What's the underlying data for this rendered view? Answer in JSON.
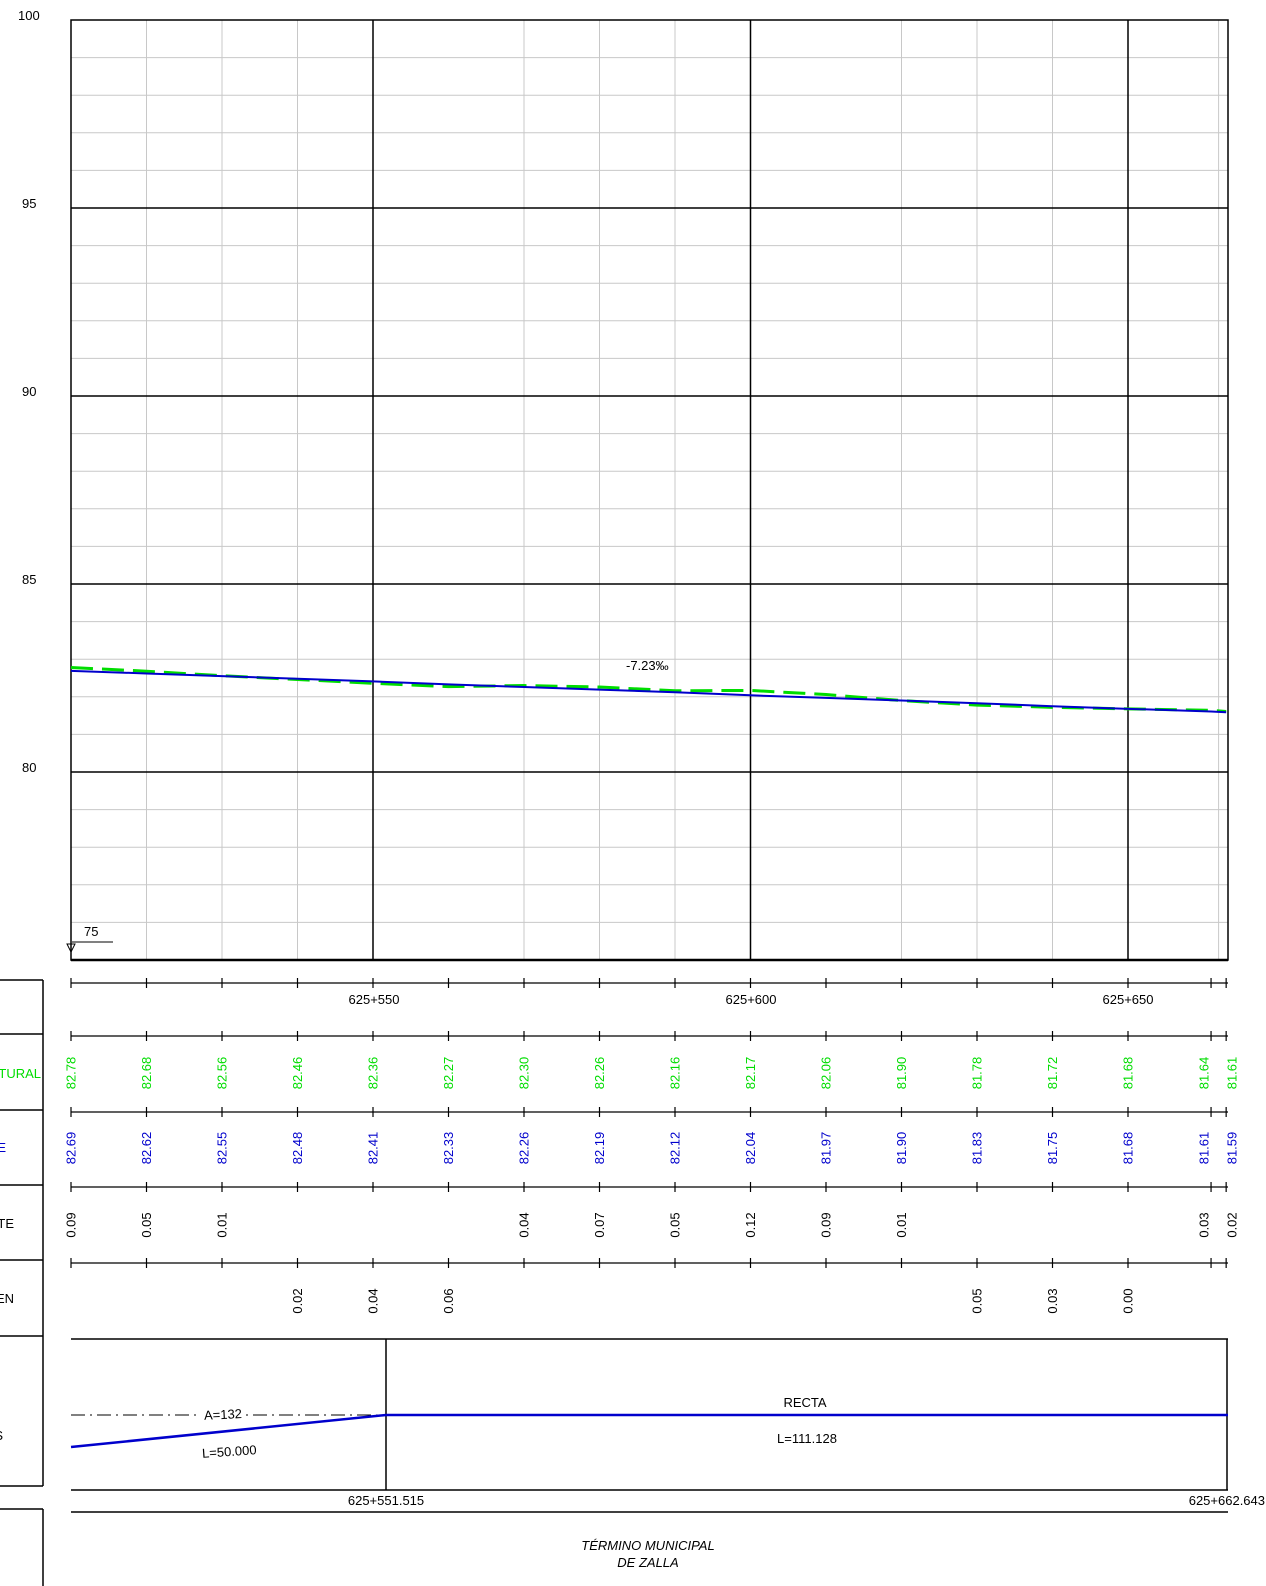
{
  "profile": {
    "elevation_labels": [
      "100",
      "95",
      "90",
      "85",
      "80"
    ],
    "datum_label": "75",
    "grade_label": "-7.23‰",
    "chainage_labels": [
      "625+550",
      "625+600",
      "625+650"
    ]
  },
  "rows": {
    "terreno_label": "TURAL",
    "rasante_label": "E",
    "desmonte_label": "TE",
    "terraplen_label": "EN",
    "alineaciones_label": "S"
  },
  "alignment": {
    "spiral_param": "A=132",
    "spiral_length": "L=50.000",
    "straight_label": "RECTA",
    "straight_length": "L=111.128",
    "start_chainage": "625+551.515",
    "end_chainage": "625+662.643"
  },
  "municipality": {
    "line1": "TÉRMINO MUNICIPAL",
    "line2": "DE ZALLA"
  },
  "colors": {
    "terrain": "#00dd00",
    "grade": "#0000cc",
    "ink": "#000000",
    "minor_grid": "#c8c8c8"
  },
  "chart_data": {
    "type": "line",
    "xlabel": "",
    "ylabel": "",
    "ylim": [
      75,
      100
    ],
    "x_chainage_major": [
      "625+550",
      "625+600",
      "625+650"
    ],
    "series": [
      {
        "kind": "terrain",
        "x": [
          0,
          10,
          20,
          30,
          40,
          50,
          60,
          70,
          80,
          90,
          100,
          110,
          120,
          130,
          140,
          151,
          153
        ],
        "values": [
          "82.78",
          "82.68",
          "82.56",
          "82.46",
          "82.36",
          "82.27",
          "82.30",
          "82.26",
          "82.16",
          "82.17",
          "82.06",
          "81.90",
          "81.78",
          "81.72",
          "81.68",
          "81.64",
          "81.61"
        ]
      },
      {
        "kind": "grade",
        "x": [
          0,
          10,
          20,
          30,
          40,
          50,
          60,
          70,
          80,
          90,
          100,
          110,
          120,
          130,
          140,
          151,
          153
        ],
        "values": [
          "82.69",
          "82.62",
          "82.55",
          "82.48",
          "82.41",
          "82.33",
          "82.26",
          "82.19",
          "82.12",
          "82.04",
          "81.97",
          "81.90",
          "81.83",
          "81.75",
          "81.68",
          "81.61",
          "81.59"
        ]
      }
    ],
    "cut": [
      "0.09",
      "0.05",
      "0.01",
      "",
      "",
      "",
      "0.04",
      "0.07",
      "0.05",
      "0.12",
      "0.09",
      "0.01",
      "",
      "",
      "",
      "0.03",
      "0.02"
    ],
    "fill": [
      "",
      "",
      "",
      "0.02",
      "0.04",
      "0.06",
      "",
      "",
      "",
      "",
      "",
      "",
      "0.05",
      "0.03",
      "0.00",
      "",
      ""
    ]
  }
}
